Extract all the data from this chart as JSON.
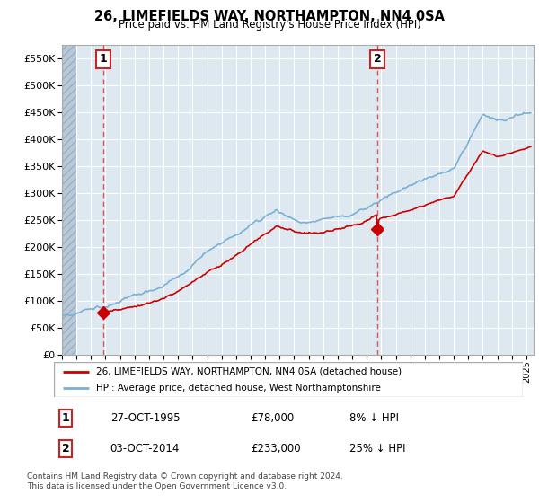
{
  "title": "26, LIMEFIELDS WAY, NORTHAMPTON, NN4 0SA",
  "subtitle": "Price paid vs. HM Land Registry's House Price Index (HPI)",
  "legend_line1": "26, LIMEFIELDS WAY, NORTHAMPTON, NN4 0SA (detached house)",
  "legend_line2": "HPI: Average price, detached house, West Northamptonshire",
  "annotation1_date": "27-OCT-1995",
  "annotation1_price": "£78,000",
  "annotation1_hpi": "8% ↓ HPI",
  "annotation2_date": "03-OCT-2014",
  "annotation2_price": "£233,000",
  "annotation2_hpi": "25% ↓ HPI",
  "footnote": "Contains HM Land Registry data © Crown copyright and database right 2024.\nThis data is licensed under the Open Government Licence v3.0.",
  "price_color": "#cc0000",
  "hpi_color": "#7ab0d4",
  "bg_light_blue": "#dde8f0",
  "bg_hatch_color": "#b8c8d8",
  "grid_color": "#ffffff",
  "vline_color": "#dd4444",
  "ylim": [
    0,
    575000
  ],
  "yticks": [
    0,
    50000,
    100000,
    150000,
    200000,
    250000,
    300000,
    350000,
    400000,
    450000,
    500000,
    550000
  ],
  "sale1_x": 1995.83,
  "sale1_y": 78000,
  "sale2_x": 2014.75,
  "sale2_y": 233000,
  "xmin": 1993.0,
  "xmax": 2025.5,
  "hatch_end": 1994.0
}
